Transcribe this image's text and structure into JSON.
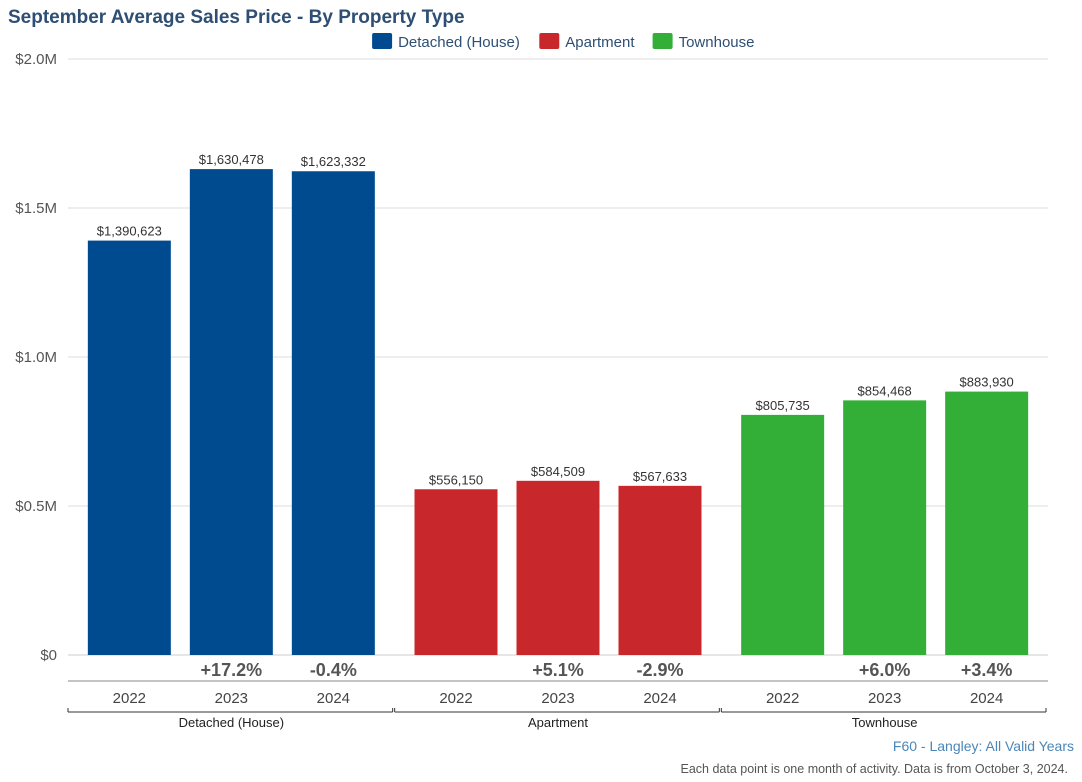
{
  "chart_data": {
    "type": "bar",
    "title": "September Average Sales Price - By Property Type",
    "ylim": [
      0,
      2000000
    ],
    "y_ticks": [
      {
        "value": 0,
        "label": "$0"
      },
      {
        "value": 500000,
        "label": "$0.5M"
      },
      {
        "value": 1000000,
        "label": "$1.0M"
      },
      {
        "value": 1500000,
        "label": "$1.5M"
      },
      {
        "value": 2000000,
        "label": "$2.0M"
      }
    ],
    "legend_position": "top-center",
    "grid": true,
    "groups": [
      {
        "name": "Detached (House)",
        "color": "#004a8f",
        "bars": [
          {
            "year": "2022",
            "value": 1390623,
            "label": "$1,390,623",
            "change": ""
          },
          {
            "year": "2023",
            "value": 1630478,
            "label": "$1,630,478",
            "change": "+17.2%"
          },
          {
            "year": "2024",
            "value": 1623332,
            "label": "$1,623,332",
            "change": "-0.4%"
          }
        ]
      },
      {
        "name": "Apartment",
        "color": "#c8272b",
        "bars": [
          {
            "year": "2022",
            "value": 556150,
            "label": "$556,150",
            "change": ""
          },
          {
            "year": "2023",
            "value": 584509,
            "label": "$584,509",
            "change": "+5.1%"
          },
          {
            "year": "2024",
            "value": 567633,
            "label": "$567,633",
            "change": "-2.9%"
          }
        ]
      },
      {
        "name": "Townhouse",
        "color": "#33ae37",
        "bars": [
          {
            "year": "2022",
            "value": 805735,
            "label": "$805,735",
            "change": ""
          },
          {
            "year": "2023",
            "value": 854468,
            "label": "$854,468",
            "change": "+6.0%"
          },
          {
            "year": "2024",
            "value": 883930,
            "label": "$883,930",
            "change": "+3.4%"
          }
        ]
      }
    ]
  },
  "source_label": "F60 - Langley: All Valid Years",
  "footnote": "Each data point is one month of activity. Data is from October 3, 2024.",
  "colors": {
    "title": "#2e4f73",
    "grid": "#dddddd",
    "axis": "#888888"
  }
}
